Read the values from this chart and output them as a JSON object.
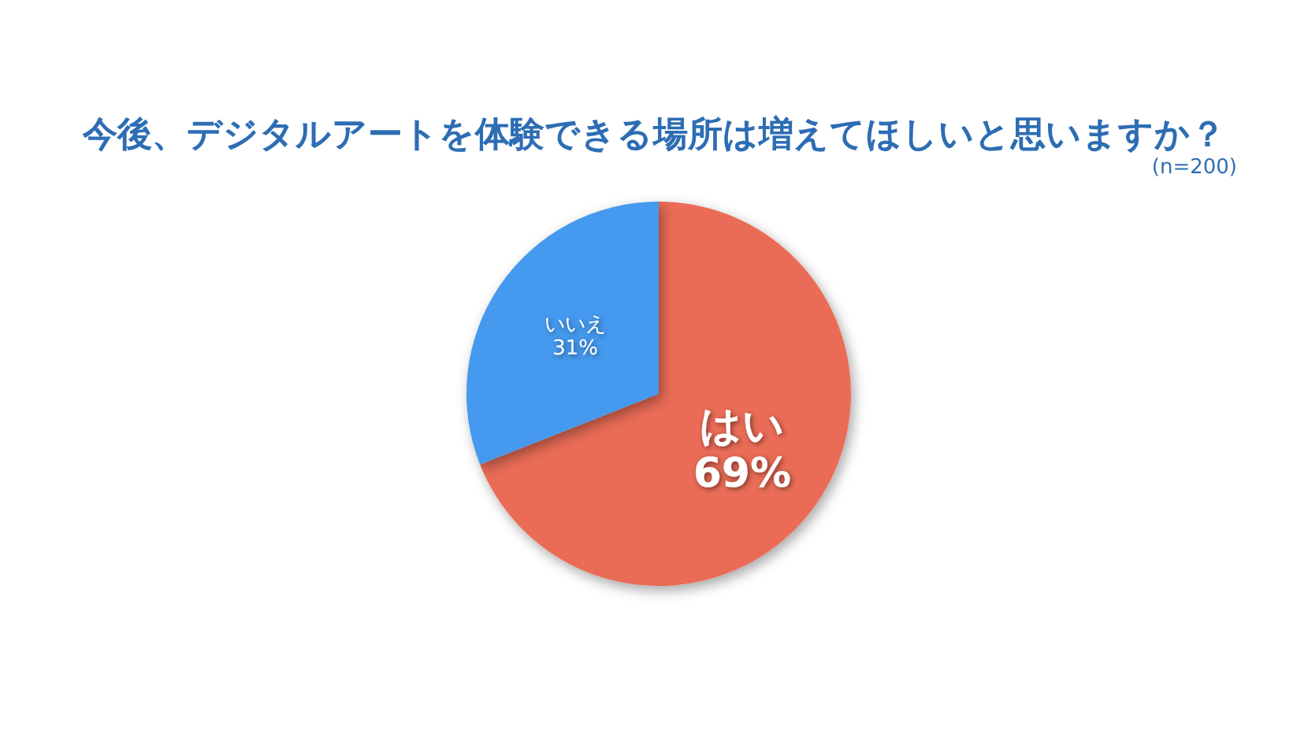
{
  "chart_data": {
    "type": "pie",
    "title": "今後、デジタルアートを体験できる場所は増えてほしいと思いますか？",
    "subtitle": "(n=200)",
    "categories": [
      "はい",
      "いいえ"
    ],
    "values": [
      69,
      31
    ],
    "value_labels": [
      "69%",
      "31%"
    ],
    "colors": [
      "#ea6c56",
      "#4499ee"
    ],
    "legend": false
  }
}
